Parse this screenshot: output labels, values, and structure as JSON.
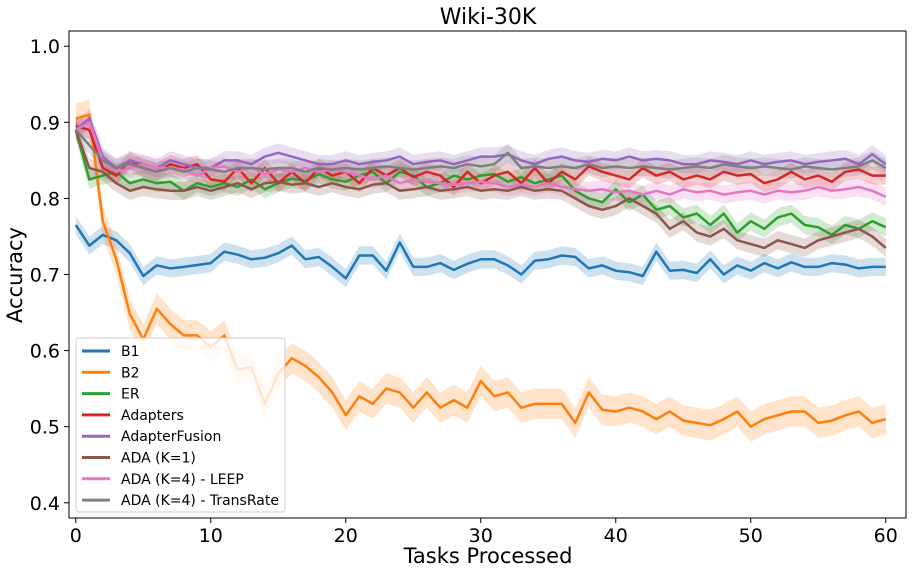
{
  "chart_data": {
    "type": "line",
    "title": "Wiki-30K",
    "xlabel": "Tasks Processed",
    "ylabel": "Accuracy",
    "xlim": [
      -0.5,
      61.5
    ],
    "ylim": [
      0.38,
      1.02
    ],
    "xticks": [
      0,
      10,
      20,
      30,
      40,
      50,
      60
    ],
    "yticks": [
      0.4,
      0.5,
      0.6,
      0.7,
      0.8,
      0.9,
      1.0
    ],
    "xtick_labels": [
      "0",
      "10",
      "20",
      "30",
      "40",
      "50",
      "60"
    ],
    "ytick_labels": [
      "0.4",
      "0.5",
      "0.6",
      "0.7",
      "0.8",
      "0.9",
      "1.0"
    ],
    "legend_position": "lower-left",
    "grid": false,
    "series": [
      {
        "name": "B1",
        "color": "#1f77b4",
        "x": [
          0,
          1,
          2,
          3,
          4,
          5,
          6,
          7,
          8,
          10,
          11,
          12,
          13,
          14,
          15,
          16,
          17,
          18,
          19,
          20,
          21,
          22,
          23,
          24,
          25,
          26,
          27,
          28,
          29,
          30,
          31,
          32,
          33,
          34,
          35,
          36,
          37,
          38,
          39,
          40,
          41,
          42,
          43,
          44,
          45,
          46,
          47,
          48,
          49,
          50,
          51,
          52,
          53,
          54,
          55,
          56,
          57,
          58,
          59,
          60
        ],
        "y": [
          0.765,
          0.738,
          0.752,
          0.745,
          0.728,
          0.698,
          0.712,
          0.708,
          0.71,
          0.715,
          0.73,
          0.726,
          0.72,
          0.722,
          0.728,
          0.738,
          0.72,
          0.723,
          0.71,
          0.695,
          0.725,
          0.725,
          0.705,
          0.742,
          0.71,
          0.71,
          0.715,
          0.706,
          0.714,
          0.72,
          0.72,
          0.712,
          0.7,
          0.718,
          0.72,
          0.725,
          0.723,
          0.708,
          0.712,
          0.705,
          0.703,
          0.698,
          0.73,
          0.705,
          0.706,
          0.702,
          0.72,
          0.7,
          0.712,
          0.705,
          0.715,
          0.708,
          0.716,
          0.71,
          0.71,
          0.715,
          0.713,
          0.708,
          0.71,
          0.71
        ],
        "band": 0.012
      },
      {
        "name": "B2",
        "color": "#ff7f0e",
        "x": [
          0,
          1,
          2,
          3,
          4,
          5,
          6,
          7,
          8,
          9,
          10,
          11,
          12,
          13,
          14,
          15,
          16,
          17,
          18,
          19,
          20,
          21,
          22,
          23,
          24,
          25,
          26,
          27,
          28,
          29,
          30,
          31,
          32,
          33,
          34,
          35,
          36,
          37,
          38,
          39,
          40,
          41,
          42,
          43,
          44,
          45,
          46,
          47,
          48,
          49,
          50,
          51,
          52,
          53,
          54,
          55,
          56,
          57,
          58,
          59,
          60
        ],
        "y": [
          0.905,
          0.91,
          0.77,
          0.72,
          0.648,
          0.615,
          0.655,
          0.635,
          0.62,
          0.62,
          0.605,
          0.62,
          0.575,
          0.578,
          0.53,
          0.57,
          0.59,
          0.58,
          0.565,
          0.545,
          0.515,
          0.54,
          0.53,
          0.55,
          0.545,
          0.525,
          0.545,
          0.525,
          0.535,
          0.525,
          0.56,
          0.54,
          0.545,
          0.525,
          0.53,
          0.53,
          0.53,
          0.505,
          0.545,
          0.522,
          0.52,
          0.525,
          0.52,
          0.51,
          0.52,
          0.508,
          0.505,
          0.502,
          0.51,
          0.52,
          0.5,
          0.51,
          0.515,
          0.52,
          0.52,
          0.505,
          0.508,
          0.515,
          0.52,
          0.505,
          0.51
        ],
        "band": 0.02
      },
      {
        "name": "ER",
        "color": "#2ca02c",
        "x": [
          0,
          1,
          2,
          3,
          4,
          5,
          6,
          7,
          8,
          9,
          10,
          11,
          12,
          13,
          14,
          15,
          16,
          17,
          18,
          19,
          20,
          21,
          22,
          23,
          24,
          25,
          26,
          27,
          28,
          29,
          30,
          31,
          32,
          33,
          34,
          35,
          36,
          37,
          38,
          39,
          40,
          41,
          42,
          43,
          44,
          45,
          46,
          47,
          48,
          49,
          50,
          51,
          52,
          53,
          54,
          55,
          56,
          57,
          58,
          59,
          60
        ],
        "y": [
          0.89,
          0.825,
          0.83,
          0.835,
          0.82,
          0.825,
          0.82,
          0.822,
          0.81,
          0.82,
          0.815,
          0.82,
          0.815,
          0.825,
          0.812,
          0.82,
          0.826,
          0.823,
          0.832,
          0.825,
          0.822,
          0.83,
          0.835,
          0.82,
          0.835,
          0.83,
          0.815,
          0.82,
          0.83,
          0.825,
          0.83,
          0.832,
          0.822,
          0.828,
          0.82,
          0.825,
          0.83,
          0.81,
          0.8,
          0.795,
          0.812,
          0.795,
          0.805,
          0.785,
          0.79,
          0.775,
          0.78,
          0.765,
          0.78,
          0.755,
          0.77,
          0.76,
          0.775,
          0.78,
          0.765,
          0.762,
          0.752,
          0.765,
          0.76,
          0.77,
          0.762
        ],
        "band": 0.012
      },
      {
        "name": "Adapters",
        "color": "#d62728",
        "x": [
          0,
          1,
          2,
          3,
          4,
          5,
          6,
          7,
          8,
          9,
          10,
          11,
          12,
          13,
          14,
          15,
          16,
          17,
          18,
          19,
          20,
          21,
          22,
          23,
          24,
          25,
          26,
          27,
          28,
          29,
          30,
          31,
          32,
          33,
          34,
          35,
          36,
          37,
          38,
          39,
          40,
          41,
          42,
          43,
          44,
          45,
          46,
          47,
          48,
          49,
          50,
          51,
          52,
          53,
          54,
          55,
          56,
          57,
          58,
          59,
          60
        ],
        "y": [
          0.895,
          0.89,
          0.84,
          0.83,
          0.85,
          0.84,
          0.835,
          0.845,
          0.84,
          0.845,
          0.825,
          0.822,
          0.84,
          0.82,
          0.84,
          0.82,
          0.835,
          0.82,
          0.84,
          0.83,
          0.835,
          0.82,
          0.84,
          0.83,
          0.84,
          0.828,
          0.835,
          0.83,
          0.815,
          0.835,
          0.82,
          0.83,
          0.835,
          0.82,
          0.84,
          0.82,
          0.835,
          0.825,
          0.842,
          0.835,
          0.83,
          0.825,
          0.84,
          0.83,
          0.835,
          0.825,
          0.83,
          0.825,
          0.835,
          0.83,
          0.832,
          0.82,
          0.825,
          0.835,
          0.825,
          0.83,
          0.822,
          0.835,
          0.838,
          0.83,
          0.83
        ],
        "band": 0.012
      },
      {
        "name": "AdapterFusion",
        "color": "#9467bd",
        "x": [
          0,
          1,
          2,
          3,
          4,
          5,
          6,
          7,
          8,
          9,
          10,
          11,
          12,
          13,
          14,
          15,
          16,
          17,
          18,
          19,
          20,
          21,
          22,
          23,
          24,
          25,
          26,
          27,
          28,
          29,
          30,
          31,
          32,
          33,
          34,
          35,
          36,
          37,
          38,
          39,
          40,
          41,
          42,
          43,
          44,
          45,
          46,
          47,
          48,
          49,
          50,
          51,
          52,
          53,
          54,
          55,
          56,
          57,
          58,
          59,
          60
        ],
        "y": [
          0.89,
          0.905,
          0.855,
          0.84,
          0.85,
          0.845,
          0.84,
          0.85,
          0.845,
          0.84,
          0.84,
          0.85,
          0.85,
          0.845,
          0.855,
          0.86,
          0.855,
          0.85,
          0.845,
          0.845,
          0.85,
          0.845,
          0.848,
          0.85,
          0.855,
          0.845,
          0.848,
          0.85,
          0.845,
          0.85,
          0.855,
          0.855,
          0.858,
          0.85,
          0.845,
          0.852,
          0.855,
          0.85,
          0.848,
          0.852,
          0.85,
          0.855,
          0.85,
          0.852,
          0.85,
          0.845,
          0.845,
          0.85,
          0.848,
          0.845,
          0.85,
          0.845,
          0.848,
          0.85,
          0.845,
          0.848,
          0.85,
          0.852,
          0.845,
          0.858,
          0.845
        ],
        "band": 0.012
      },
      {
        "name": "ADA (K=1)",
        "color": "#8c564b",
        "x": [
          0,
          1,
          2,
          3,
          4,
          5,
          6,
          7,
          8,
          9,
          10,
          11,
          12,
          13,
          14,
          15,
          16,
          17,
          18,
          19,
          20,
          21,
          22,
          23,
          24,
          25,
          26,
          27,
          28,
          29,
          30,
          31,
          32,
          33,
          34,
          35,
          36,
          37,
          38,
          39,
          40,
          41,
          42,
          43,
          44,
          45,
          46,
          47,
          48,
          49,
          50,
          51,
          52,
          53,
          54,
          55,
          56,
          57,
          58,
          59,
          60
        ],
        "y": [
          0.89,
          0.84,
          0.835,
          0.82,
          0.81,
          0.815,
          0.812,
          0.81,
          0.81,
          0.815,
          0.81,
          0.815,
          0.82,
          0.812,
          0.82,
          0.822,
          0.818,
          0.82,
          0.815,
          0.82,
          0.815,
          0.812,
          0.818,
          0.82,
          0.81,
          0.812,
          0.815,
          0.81,
          0.812,
          0.815,
          0.81,
          0.812,
          0.81,
          0.815,
          0.81,
          0.812,
          0.81,
          0.8,
          0.79,
          0.785,
          0.79,
          0.8,
          0.79,
          0.78,
          0.76,
          0.77,
          0.755,
          0.75,
          0.76,
          0.745,
          0.74,
          0.735,
          0.745,
          0.74,
          0.735,
          0.745,
          0.75,
          0.755,
          0.76,
          0.75,
          0.735
        ],
        "band": 0.012
      },
      {
        "name": "ADA (K=4) - LEEP",
        "color": "#e377c2",
        "x": [
          0,
          1,
          2,
          3,
          4,
          5,
          6,
          7,
          8,
          9,
          10,
          11,
          12,
          13,
          14,
          15,
          16,
          17,
          18,
          19,
          20,
          21,
          22,
          23,
          24,
          25,
          26,
          27,
          28,
          29,
          30,
          31,
          32,
          33,
          34,
          35,
          36,
          37,
          38,
          39,
          40,
          41,
          42,
          43,
          44,
          45,
          46,
          47,
          48,
          49,
          50,
          51,
          52,
          53,
          54,
          55,
          56,
          57,
          58,
          59,
          60
        ],
        "y": [
          0.89,
          0.9,
          0.85,
          0.835,
          0.84,
          0.845,
          0.84,
          0.84,
          0.838,
          0.83,
          0.84,
          0.842,
          0.835,
          0.84,
          0.832,
          0.838,
          0.835,
          0.84,
          0.835,
          0.838,
          0.835,
          0.83,
          0.825,
          0.83,
          0.82,
          0.825,
          0.822,
          0.82,
          0.818,
          0.82,
          0.822,
          0.82,
          0.815,
          0.818,
          0.815,
          0.82,
          0.815,
          0.812,
          0.81,
          0.812,
          0.808,
          0.81,
          0.805,
          0.81,
          0.805,
          0.812,
          0.808,
          0.81,
          0.805,
          0.808,
          0.81,
          0.805,
          0.81,
          0.808,
          0.81,
          0.815,
          0.81,
          0.812,
          0.815,
          0.81,
          0.802
        ],
        "band": 0.012
      },
      {
        "name": "ADA (K=4) - TransRate",
        "color": "#7f7f7f",
        "x": [
          0,
          1,
          2,
          3,
          4,
          5,
          6,
          7,
          8,
          9,
          10,
          11,
          12,
          13,
          14,
          15,
          16,
          17,
          18,
          19,
          20,
          21,
          22,
          23,
          24,
          25,
          26,
          27,
          28,
          29,
          30,
          31,
          32,
          33,
          34,
          35,
          36,
          37,
          38,
          39,
          40,
          41,
          42,
          43,
          44,
          45,
          46,
          47,
          48,
          49,
          50,
          51,
          52,
          53,
          54,
          55,
          56,
          57,
          58,
          59,
          60
        ],
        "y": [
          0.89,
          0.87,
          0.85,
          0.84,
          0.845,
          0.84,
          0.835,
          0.84,
          0.835,
          0.84,
          0.838,
          0.835,
          0.84,
          0.84,
          0.838,
          0.84,
          0.84,
          0.835,
          0.84,
          0.838,
          0.84,
          0.838,
          0.84,
          0.842,
          0.84,
          0.838,
          0.84,
          0.842,
          0.84,
          0.845,
          0.842,
          0.845,
          0.86,
          0.84,
          0.842,
          0.84,
          0.842,
          0.84,
          0.845,
          0.84,
          0.842,
          0.84,
          0.842,
          0.84,
          0.838,
          0.84,
          0.842,
          0.84,
          0.845,
          0.842,
          0.84,
          0.842,
          0.84,
          0.838,
          0.842,
          0.84,
          0.838,
          0.84,
          0.842,
          0.85,
          0.84
        ],
        "band": 0.012
      }
    ]
  }
}
